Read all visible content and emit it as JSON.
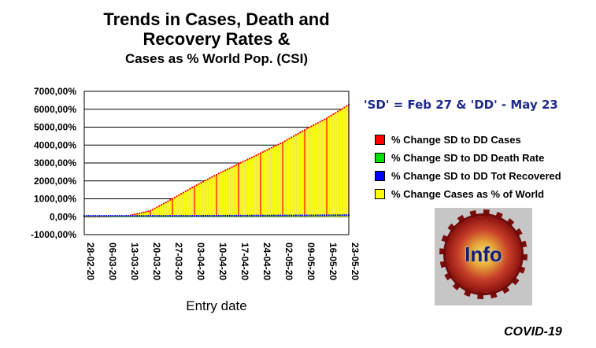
{
  "title": {
    "line1": "Trends in Cases, Death and",
    "line2": "Recovery Rates &",
    "line3": "Cases as % World Pop. (CSI)"
  },
  "subheading": "'SD' = Feb 27 & 'DD' - May 23",
  "legend": [
    {
      "label": "% Change SD to DD Cases",
      "color": "#ff0000"
    },
    {
      "label": "% Change SD to DD Death Rate",
      "color": "#00e000"
    },
    {
      "label": "% Change SD to DD Tot Recovered",
      "color": "#0000ff"
    },
    {
      "label": "% Change Cases as % of World",
      "color": "#ffff00"
    }
  ],
  "badge": {
    "text": "Info"
  },
  "footer": "COVID-19",
  "chart_data": {
    "type": "area",
    "title": "Trends in Cases, Death and Recovery Rates & Cases as % World Pop. (CSI)",
    "xlabel": "Entry date",
    "ylabel": "",
    "ylim": [
      -1000,
      7000
    ],
    "yticks": [
      -1000,
      0,
      1000,
      2000,
      3000,
      4000,
      5000,
      6000,
      7000
    ],
    "ytick_labels": [
      "-1000,00%",
      "0,00%",
      "1000,00%",
      "2000,00%",
      "3000,00%",
      "4000,00%",
      "5000,00%",
      "6000,00%",
      "7000,00%"
    ],
    "xtick_labels": [
      "28-02-20",
      "06-03-20",
      "13-03-20",
      "20-03-20",
      "27-03-20",
      "03-04-20",
      "10-04-20",
      "17-04-20",
      "24-04-20",
      "02-05-20",
      "09-05-20",
      "16-05-20",
      "23-05-20"
    ],
    "x": [
      "28-02-20",
      "06-03-20",
      "13-03-20",
      "20-03-20",
      "27-03-20",
      "03-04-20",
      "10-04-20",
      "17-04-20",
      "24-04-20",
      "02-05-20",
      "09-05-20",
      "16-05-20",
      "23-05-20"
    ],
    "grid": true,
    "legend_position": "right",
    "series": [
      {
        "name": "% Change SD to DD Cases",
        "color": "#ff0000",
        "style": "dotted-line",
        "values": [
          0,
          5,
          50,
          330,
          1000,
          1700,
          2350,
          2950,
          3550,
          4150,
          4850,
          5500,
          6250
        ]
      },
      {
        "name": "% Change SD to DD Death Rate",
        "color": "#00e000",
        "style": "dotted-line",
        "values": [
          0,
          0,
          0,
          0,
          0,
          5,
          10,
          15,
          20,
          25,
          30,
          40,
          50
        ]
      },
      {
        "name": "% Change SD to DD Tot Recovered",
        "color": "#0000ff",
        "style": "dotted-line",
        "values": [
          0,
          0,
          0,
          0,
          0,
          0,
          5,
          10,
          15,
          20,
          25,
          30,
          40
        ]
      },
      {
        "name": "% Change Cases as % of World",
        "color": "#ffff00",
        "style": "area",
        "values": [
          0,
          5,
          50,
          330,
          1000,
          1700,
          2350,
          2950,
          3550,
          4150,
          4850,
          5500,
          6250
        ]
      }
    ]
  }
}
